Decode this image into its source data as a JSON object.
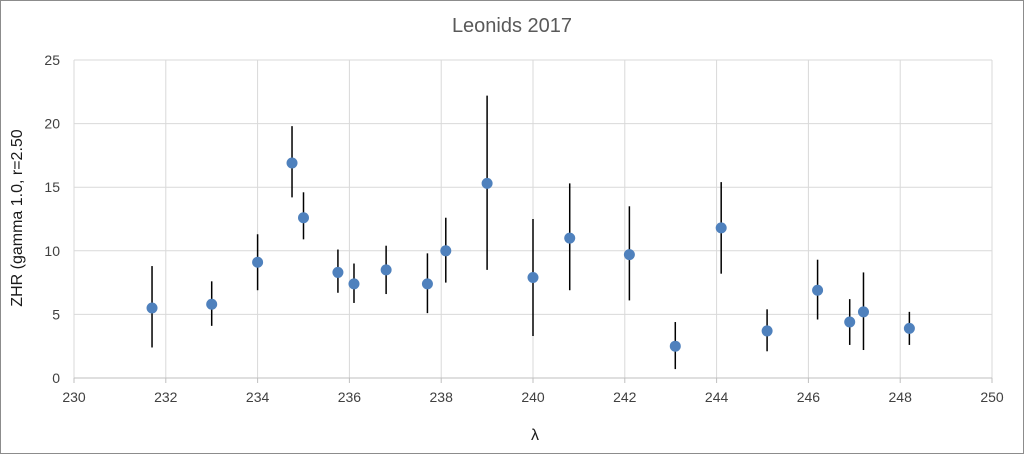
{
  "chart_data": {
    "type": "scatter",
    "title": "Leonids 2017",
    "xlabel": "λ",
    "ylabel": "ZHR (gamma 1.0, r=2.50",
    "xlim": [
      230,
      250
    ],
    "ylim": [
      0,
      25
    ],
    "x_ticks": [
      230,
      232,
      234,
      236,
      238,
      240,
      242,
      244,
      246,
      248,
      250
    ],
    "y_ticks": [
      0,
      5,
      10,
      15,
      20,
      25
    ],
    "grid": true,
    "legend": "none",
    "marker_color": "#4f81bd",
    "error_bar_color": "#000000",
    "series": [
      {
        "points": [
          {
            "x": 231.7,
            "y": 5.5,
            "lo": 2.4,
            "hi": 8.8
          },
          {
            "x": 233.0,
            "y": 5.8,
            "lo": 4.1,
            "hi": 7.6
          },
          {
            "x": 234.0,
            "y": 9.1,
            "lo": 6.9,
            "hi": 11.3
          },
          {
            "x": 234.75,
            "y": 16.9,
            "lo": 14.2,
            "hi": 19.8
          },
          {
            "x": 235.0,
            "y": 12.6,
            "lo": 10.9,
            "hi": 14.6
          },
          {
            "x": 235.75,
            "y": 8.3,
            "lo": 6.7,
            "hi": 10.1
          },
          {
            "x": 236.1,
            "y": 7.4,
            "lo": 5.9,
            "hi": 9.0
          },
          {
            "x": 236.8,
            "y": 8.5,
            "lo": 6.6,
            "hi": 10.4
          },
          {
            "x": 237.7,
            "y": 7.4,
            "lo": 5.1,
            "hi": 9.8
          },
          {
            "x": 238.1,
            "y": 10.0,
            "lo": 7.5,
            "hi": 12.6
          },
          {
            "x": 239.0,
            "y": 15.3,
            "lo": 8.5,
            "hi": 22.2
          },
          {
            "x": 240.0,
            "y": 7.9,
            "lo": 3.3,
            "hi": 12.5
          },
          {
            "x": 240.8,
            "y": 11.0,
            "lo": 6.9,
            "hi": 15.3
          },
          {
            "x": 242.1,
            "y": 9.7,
            "lo": 6.1,
            "hi": 13.5
          },
          {
            "x": 243.1,
            "y": 2.5,
            "lo": 0.7,
            "hi": 4.4
          },
          {
            "x": 244.1,
            "y": 11.8,
            "lo": 8.2,
            "hi": 15.4
          },
          {
            "x": 245.1,
            "y": 3.7,
            "lo": 2.1,
            "hi": 5.4
          },
          {
            "x": 246.2,
            "y": 6.9,
            "lo": 4.6,
            "hi": 9.3
          },
          {
            "x": 246.9,
            "y": 4.4,
            "lo": 2.6,
            "hi": 6.2
          },
          {
            "x": 247.2,
            "y": 5.2,
            "lo": 2.2,
            "hi": 8.3
          },
          {
            "x": 248.2,
            "y": 3.9,
            "lo": 2.6,
            "hi": 5.2
          }
        ]
      }
    ]
  }
}
